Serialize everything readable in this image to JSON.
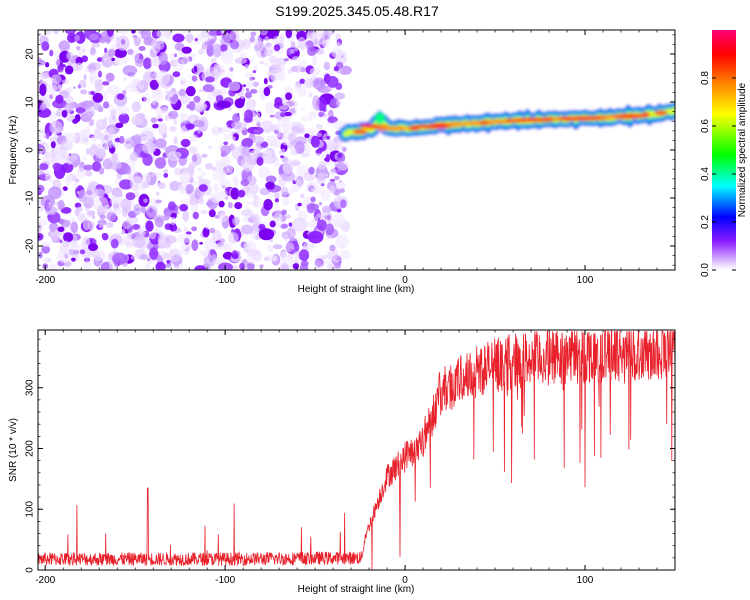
{
  "title": "S199.2025.345.05.48.R17",
  "chart_data": [
    {
      "type": "heatmap",
      "xlabel": "Height of straight line (km)",
      "ylabel": "Frequency (Hz)",
      "xlim": [
        -204,
        150
      ],
      "ylim": [
        -25,
        25
      ],
      "x_ticks": [
        -200,
        -100,
        0,
        100
      ],
      "y_ticks": [
        -20,
        -10,
        0,
        10,
        20
      ],
      "noise_region_x": [
        -204,
        -33
      ],
      "signal_track": {
        "x": [
          -33,
          -25,
          -18,
          -14,
          -10,
          0,
          10,
          20,
          40,
          60,
          80,
          100,
          120,
          140,
          150
        ],
        "y": [
          3.5,
          3.8,
          4.5,
          6.5,
          4.5,
          4.5,
          4.6,
          5.2,
          5.6,
          6.1,
          6.4,
          6.6,
          6.9,
          7.6,
          8.2
        ]
      },
      "colorbar": {
        "label": "Normalized spectral amplitude",
        "range": [
          0.0,
          1.0
        ],
        "ticks": [
          0.0,
          0.2,
          0.4,
          0.6,
          0.8
        ],
        "colors": [
          "#ffffff",
          "#cc99ff",
          "#8000ff",
          "#0000ff",
          "#00ffff",
          "#00ff00",
          "#ffff00",
          "#ff8000",
          "#ff0000",
          "#ff0080"
        ]
      }
    },
    {
      "type": "line",
      "xlabel": "Height of straight line (km)",
      "ylabel": "SNR (10 * v/v)",
      "xlim": [
        -204,
        150
      ],
      "ylim": [
        0,
        395
      ],
      "x_ticks": [
        -200,
        -100,
        0,
        100
      ],
      "y_ticks": [
        0,
        100,
        200,
        300
      ],
      "color": "#e8202a",
      "series": [
        {
          "x": [
            -204,
            -100,
            -24,
            -22,
            -10,
            0,
            10,
            20,
            40,
            60,
            80,
            100,
            120,
            150
          ],
          "y": [
            18,
            18,
            20,
            55,
            150,
            180,
            210,
            285,
            320,
            335,
            340,
            345,
            350,
            352
          ]
        }
      ]
    }
  ]
}
